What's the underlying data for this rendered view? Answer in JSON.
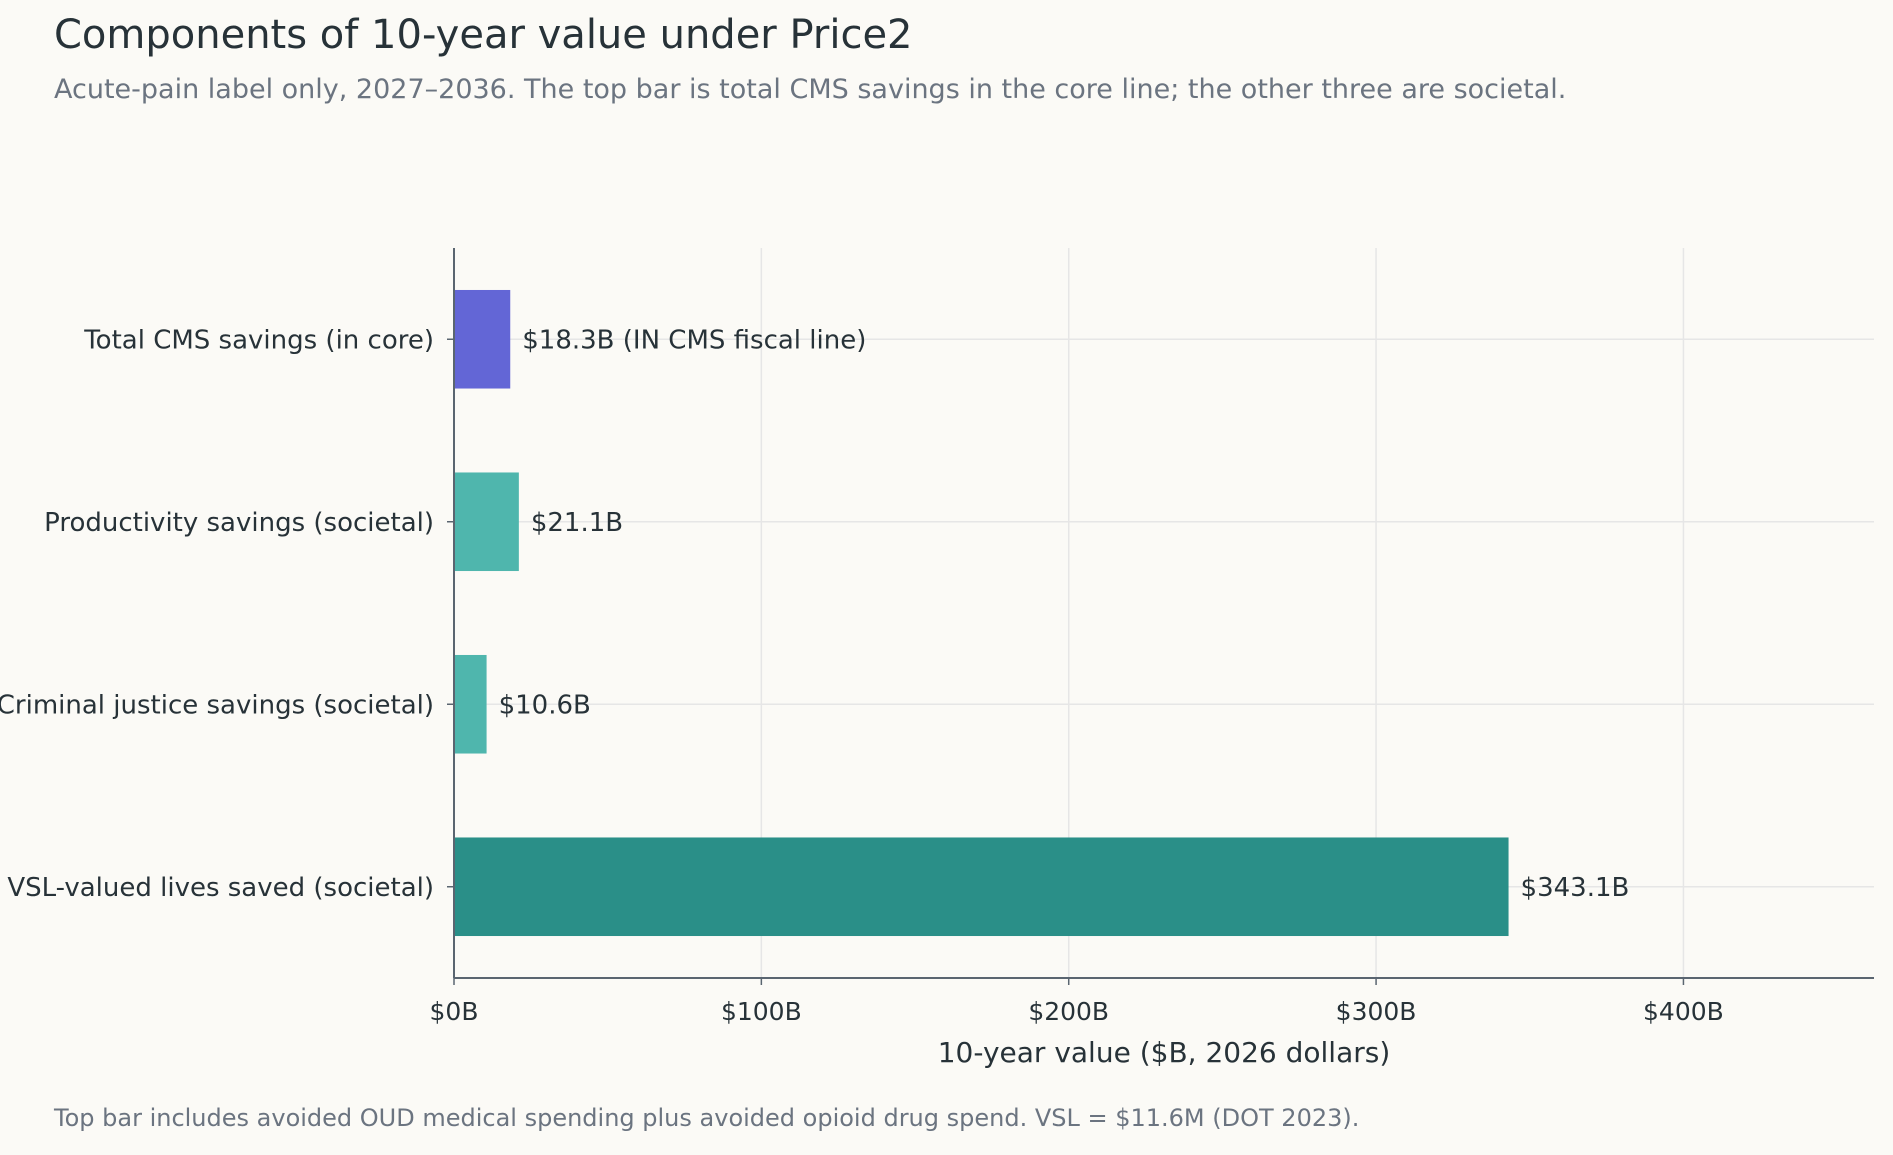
{
  "header": {
    "title": "Components of 10-year value under Price2",
    "subtitle": "Acute-pain label only, 2027–2036. The top bar is total CMS savings in the core line; the other three are societal."
  },
  "footnote": "Top bar includes avoided OUD medical spending plus avoided opioid drug spend. VSL = $11.6M (DOT 2023).",
  "chart_data": {
    "type": "bar",
    "orientation": "horizontal",
    "categories": [
      "Total CMS savings (in core)",
      "Productivity savings (societal)",
      "Criminal justice savings (societal)",
      "VSL-valued lives saved (societal)"
    ],
    "values": [
      18.3,
      21.1,
      10.6,
      343.1
    ],
    "value_labels": [
      "$18.3B  (IN CMS fiscal line)",
      "$21.1B",
      "$10.6B",
      "$343.1B"
    ],
    "colors": [
      "#6366d6",
      "#4fb6ad",
      "#4fb6ad",
      "#2a8f88"
    ],
    "xlabel": "10-year value ($B, 2026 dollars)",
    "ylabel": "",
    "xlim": [
      0,
      462
    ],
    "xticks": [
      0,
      100,
      200,
      300,
      400
    ],
    "xtick_labels": [
      "$0B",
      "$100B",
      "$200B",
      "$300B",
      "$400B"
    ],
    "grid": true
  }
}
